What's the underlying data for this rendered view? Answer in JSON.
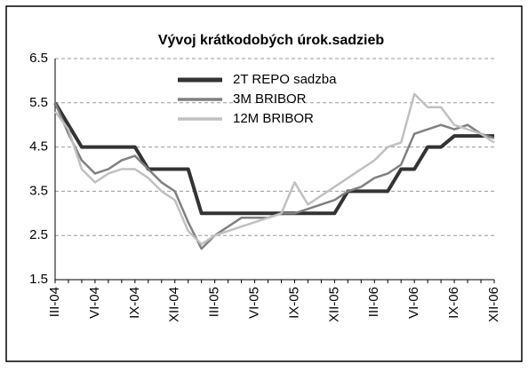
{
  "chart_data": {
    "type": "line",
    "title": "Vývoj krátkodobých úrok.sadzieb",
    "categories": [
      "III-04",
      null,
      null,
      "VI-04",
      null,
      null,
      "IX-04",
      null,
      null,
      "XII-04",
      null,
      null,
      "III-05",
      null,
      null,
      "VI-05",
      null,
      null,
      "IX-05",
      null,
      null,
      "XII-05",
      null,
      null,
      "III-06",
      null,
      null,
      "VI-06",
      null,
      null,
      "IX-06",
      null,
      null,
      "XII-06"
    ],
    "series": [
      {
        "name": "2T REPO sadzba",
        "color": "#333333",
        "width": 4,
        "values": [
          5.5,
          5.0,
          4.5,
          4.5,
          4.5,
          4.5,
          4.5,
          4.0,
          4.0,
          4.0,
          4.0,
          3.0,
          3.0,
          3.0,
          3.0,
          3.0,
          3.0,
          3.0,
          3.0,
          3.0,
          3.0,
          3.0,
          3.5,
          3.5,
          3.5,
          3.5,
          4.0,
          4.0,
          4.5,
          4.5,
          4.75,
          4.75,
          4.75,
          4.75
        ]
      },
      {
        "name": "3M BRIBOR",
        "color": "#808080",
        "width": 2.5,
        "values": [
          5.5,
          4.8,
          4.2,
          3.9,
          4.0,
          4.2,
          4.3,
          4.0,
          3.7,
          3.5,
          2.8,
          2.2,
          2.5,
          2.7,
          2.9,
          2.9,
          2.9,
          3.0,
          3.0,
          3.1,
          3.2,
          3.3,
          3.5,
          3.6,
          3.8,
          3.9,
          4.1,
          4.8,
          4.9,
          5.0,
          4.9,
          5.0,
          4.8,
          4.7
        ]
      },
      {
        "name": "12M BRIBOR",
        "color": "#c0c0c0",
        "width": 2.5,
        "values": [
          5.3,
          4.9,
          4.0,
          3.7,
          3.9,
          4.0,
          4.0,
          3.8,
          3.5,
          3.3,
          2.6,
          2.3,
          2.5,
          2.6,
          2.7,
          2.8,
          2.9,
          3.0,
          3.7,
          3.2,
          3.4,
          3.6,
          3.8,
          4.0,
          4.2,
          4.5,
          4.6,
          5.7,
          5.4,
          5.4,
          5.0,
          4.9,
          4.8,
          4.6
        ]
      }
    ],
    "ylim": [
      1.5,
      6.5
    ],
    "yticks": [
      1.5,
      2.5,
      3.5,
      4.5,
      5.5,
      6.5
    ],
    "grid": true,
    "legend": "top"
  }
}
